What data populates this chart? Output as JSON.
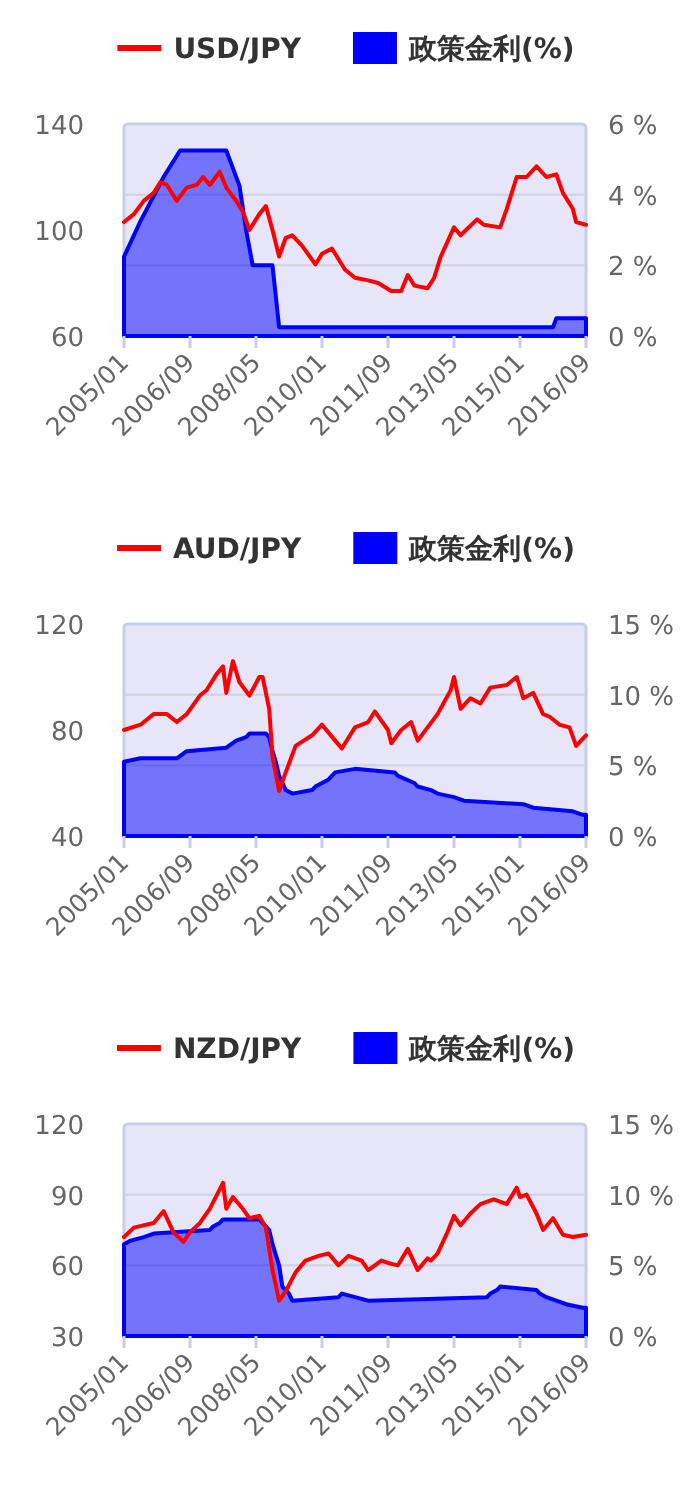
{
  "chart_data": [
    {
      "type": "line",
      "xlim": [
        "2005-01",
        "2016-09"
      ],
      "xticks": [
        {
          "value": "2005-01",
          "label": "2005/01"
        },
        {
          "value": "2006-09",
          "label": "2006/09"
        },
        {
          "value": "2008-05",
          "label": "2008/05"
        },
        {
          "value": "2010-01",
          "label": "2010/01"
        },
        {
          "value": "2011-09",
          "label": "2011/09"
        },
        {
          "value": "2013-05",
          "label": "2013/05"
        },
        {
          "value": "2015-01",
          "label": "2015/01"
        },
        {
          "value": "2016-09",
          "label": "2016/09"
        }
      ],
      "ylim": [
        60,
        140
      ],
      "yticks": [
        60,
        100,
        140
      ],
      "y2lim": [
        0,
        6
      ],
      "y2ticks": [
        {
          "value": 0,
          "label": "0 %"
        },
        {
          "value": 2,
          "label": "2 %"
        },
        {
          "value": 4,
          "label": "4 %"
        },
        {
          "value": 6,
          "label": "6 %"
        }
      ],
      "grid": true,
      "legend": "top",
      "series": [
        {
          "type": "area",
          "axis": "y2",
          "name": "政策金利(%)",
          "color": "#0000ff",
          "x": [
            "2005-01",
            "2005-06",
            "2006-01",
            "2006-06",
            "2007-08",
            "2007-10",
            "2007-12",
            "2008-02",
            "2008-04",
            "2008-10",
            "2008-12",
            "2015-11",
            "2015-12",
            "2016-09"
          ],
          "values": [
            2.25,
            3.25,
            4.5,
            5.25,
            5.25,
            4.75,
            4.25,
            3.0,
            2.0,
            2.0,
            0.25,
            0.25,
            0.5,
            0.5
          ]
        },
        {
          "name": "USD/JPY",
          "color": "#ff0000",
          "x": [
            "2005-01",
            "2005-04",
            "2005-07",
            "2005-10",
            "2005-12",
            "2006-02",
            "2006-05",
            "2006-08",
            "2006-11",
            "2007-01",
            "2007-03",
            "2007-06",
            "2007-08",
            "2007-11",
            "2008-01",
            "2008-03",
            "2008-06",
            "2008-08",
            "2008-10",
            "2008-12",
            "2009-02",
            "2009-04",
            "2009-07",
            "2009-11",
            "2010-01",
            "2010-04",
            "2010-08",
            "2010-11",
            "2011-03",
            "2011-06",
            "2011-10",
            "2012-01",
            "2012-03",
            "2012-05",
            "2012-09",
            "2012-11",
            "2013-01",
            "2013-05",
            "2013-07",
            "2013-12",
            "2014-02",
            "2014-07",
            "2014-09",
            "2014-12",
            "2015-03",
            "2015-06",
            "2015-09",
            "2015-12",
            "2016-02",
            "2016-05",
            "2016-06",
            "2016-09"
          ],
          "values": [
            103,
            106,
            111,
            114,
            118,
            117,
            111,
            116,
            117,
            120,
            117,
            122,
            116,
            111,
            107,
            100,
            106,
            109,
            100,
            90,
            97,
            98,
            94,
            87,
            91,
            93,
            85,
            82,
            81,
            80,
            77,
            77,
            83,
            79,
            78,
            82,
            90,
            101,
            98,
            104,
            102,
            101,
            108,
            120,
            120,
            124,
            120,
            121,
            114,
            108,
            103,
            102
          ]
        }
      ]
    },
    {
      "type": "line",
      "xlim": [
        "2005-01",
        "2016-09"
      ],
      "xticks": [
        {
          "value": "2005-01",
          "label": "2005/01"
        },
        {
          "value": "2006-09",
          "label": "2006/09"
        },
        {
          "value": "2008-05",
          "label": "2008/05"
        },
        {
          "value": "2010-01",
          "label": "2010/01"
        },
        {
          "value": "2011-09",
          "label": "2011/09"
        },
        {
          "value": "2013-05",
          "label": "2013/05"
        },
        {
          "value": "2015-01",
          "label": "2015/01"
        },
        {
          "value": "2016-09",
          "label": "2016/09"
        }
      ],
      "ylim": [
        40,
        120
      ],
      "yticks": [
        40,
        80,
        120
      ],
      "y2lim": [
        0,
        15
      ],
      "y2ticks": [
        {
          "value": 0,
          "label": "0 %"
        },
        {
          "value": 5,
          "label": "5 %"
        },
        {
          "value": 10,
          "label": "10 %"
        },
        {
          "value": 15,
          "label": "15 %"
        }
      ],
      "grid": true,
      "legend": "top",
      "series": [
        {
          "type": "area",
          "axis": "y2",
          "name": "政策金利(%)",
          "color": "#0000ff",
          "x": [
            "2005-01",
            "2005-06",
            "2006-05",
            "2006-08",
            "2007-08",
            "2007-11",
            "2008-02",
            "2008-03",
            "2008-08",
            "2008-09",
            "2008-10",
            "2008-11",
            "2008-12",
            "2009-02",
            "2009-04",
            "2009-10",
            "2009-11",
            "2010-03",
            "2010-05",
            "2010-11",
            "2011-11",
            "2011-12",
            "2012-05",
            "2012-06",
            "2012-10",
            "2012-12",
            "2013-05",
            "2013-08",
            "2015-02",
            "2015-05",
            "2016-05",
            "2016-08",
            "2016-09"
          ],
          "values": [
            5.25,
            5.5,
            5.5,
            6.0,
            6.25,
            6.75,
            7.0,
            7.25,
            7.25,
            7.0,
            6.0,
            5.25,
            4.25,
            3.25,
            3.0,
            3.25,
            3.5,
            4.0,
            4.5,
            4.75,
            4.5,
            4.25,
            3.75,
            3.5,
            3.25,
            3.0,
            2.75,
            2.5,
            2.25,
            2.0,
            1.75,
            1.5,
            1.5
          ]
        },
        {
          "name": "AUD/JPY",
          "color": "#ff0000",
          "x": [
            "2005-01",
            "2005-06",
            "2005-10",
            "2006-02",
            "2006-05",
            "2006-08",
            "2006-12",
            "2007-02",
            "2007-05",
            "2007-07",
            "2007-08",
            "2007-10",
            "2007-12",
            "2008-03",
            "2008-06",
            "2008-07",
            "2008-09",
            "2008-10",
            "2008-12",
            "2009-02",
            "2009-05",
            "2009-10",
            "2010-01",
            "2010-05",
            "2010-07",
            "2010-11",
            "2011-03",
            "2011-05",
            "2011-09",
            "2011-10",
            "2012-01",
            "2012-04",
            "2012-06",
            "2012-12",
            "2013-04",
            "2013-05",
            "2013-07",
            "2013-10",
            "2014-01",
            "2014-04",
            "2014-09",
            "2014-12",
            "2015-02",
            "2015-05",
            "2015-08",
            "2015-10",
            "2016-01",
            "2016-04",
            "2016-06",
            "2016-09"
          ],
          "values": [
            80,
            82,
            86,
            86,
            83,
            86,
            93,
            95,
            101,
            104,
            94,
            106,
            98,
            93,
            100,
            100,
            88,
            70,
            57,
            64,
            74,
            78,
            82,
            76,
            73,
            81,
            83,
            87,
            80,
            75,
            80,
            83,
            76,
            86,
            95,
            100,
            88,
            92,
            90,
            96,
            97,
            100,
            92,
            94,
            86,
            85,
            82,
            81,
            74,
            78
          ]
        }
      ]
    },
    {
      "type": "line",
      "xlim": [
        "2005-01",
        "2016-09"
      ],
      "xticks": [
        {
          "value": "2005-01",
          "label": "2005/01"
        },
        {
          "value": "2006-09",
          "label": "2006/09"
        },
        {
          "value": "2008-05",
          "label": "2008/05"
        },
        {
          "value": "2010-01",
          "label": "2010/01"
        },
        {
          "value": "2011-09",
          "label": "2011/09"
        },
        {
          "value": "2013-05",
          "label": "2013/05"
        },
        {
          "value": "2015-01",
          "label": "2015/01"
        },
        {
          "value": "2016-09",
          "label": "2016/09"
        }
      ],
      "ylim": [
        30,
        120
      ],
      "yticks": [
        30,
        60,
        90,
        120
      ],
      "y2lim": [
        0,
        15
      ],
      "y2ticks": [
        {
          "value": 0,
          "label": "0 %"
        },
        {
          "value": 5,
          "label": "5 %"
        },
        {
          "value": 10,
          "label": "10 %"
        },
        {
          "value": 15,
          "label": "15 %"
        }
      ],
      "grid": true,
      "legend": "top",
      "series": [
        {
          "type": "area",
          "axis": "y2",
          "name": "政策金利(%)",
          "color": "#0000ff",
          "x": [
            "2005-01",
            "2005-03",
            "2005-07",
            "2005-10",
            "2007-03",
            "2007-04",
            "2007-06",
            "2007-07",
            "2008-06",
            "2008-07",
            "2008-09",
            "2008-10",
            "2008-12",
            "2009-01",
            "2009-03",
            "2009-04",
            "2010-06",
            "2010-07",
            "2011-03",
            "2014-03",
            "2014-04",
            "2014-06",
            "2014-07",
            "2015-06",
            "2015-07",
            "2015-09",
            "2015-12",
            "2016-03",
            "2016-08",
            "2016-09"
          ],
          "values": [
            6.5,
            6.75,
            7.0,
            7.25,
            7.5,
            7.75,
            8.0,
            8.25,
            8.25,
            8.0,
            7.5,
            6.5,
            5.0,
            3.5,
            3.0,
            2.5,
            2.75,
            3.0,
            2.5,
            2.75,
            3.0,
            3.25,
            3.5,
            3.25,
            3.0,
            2.75,
            2.5,
            2.25,
            2.0,
            2.0
          ]
        },
        {
          "name": "NZD/JPY",
          "color": "#ff0000",
          "x": [
            "2005-01",
            "2005-04",
            "2005-10",
            "2006-01",
            "2006-04",
            "2006-07",
            "2006-09",
            "2006-12",
            "2007-03",
            "2007-07",
            "2007-08",
            "2007-10",
            "2008-01",
            "2008-03",
            "2008-06",
            "2008-08",
            "2008-10",
            "2008-12",
            "2009-02",
            "2009-05",
            "2009-08",
            "2009-12",
            "2010-03",
            "2010-06",
            "2010-09",
            "2011-01",
            "2011-03",
            "2011-07",
            "2011-09",
            "2011-12",
            "2012-03",
            "2012-06",
            "2012-09",
            "2012-10",
            "2012-12",
            "2013-03",
            "2013-05",
            "2013-07",
            "2013-10",
            "2014-01",
            "2014-05",
            "2014-09",
            "2014-12",
            "2015-01",
            "2015-03",
            "2015-06",
            "2015-08",
            "2015-11",
            "2016-02",
            "2016-05",
            "2016-09"
          ],
          "values": [
            72,
            76,
            78,
            83,
            74,
            70,
            74,
            78,
            84,
            95,
            84,
            89,
            84,
            80,
            81,
            76,
            58,
            45,
            49,
            57,
            62,
            64,
            65,
            60,
            64,
            62,
            58,
            62,
            61,
            60,
            67,
            58,
            63,
            62,
            65,
            74,
            81,
            77,
            82,
            86,
            88,
            86,
            93,
            89,
            90,
            82,
            75,
            80,
            73,
            72,
            73
          ]
        }
      ]
    }
  ]
}
